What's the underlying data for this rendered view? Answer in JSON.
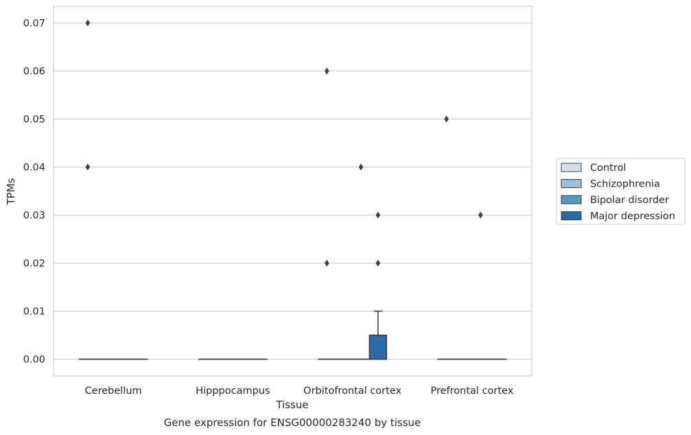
{
  "chart_data": {
    "type": "box",
    "title": "Gene expression for ENSG00000283240 by tissue",
    "xlabel": "Tissue",
    "ylabel": "TPMs",
    "categories": [
      "Cerebellum",
      "Hipppocampus",
      "Orbitofrontal cortex",
      "Prefrontal cortex"
    ],
    "ylim": [
      -0.0035,
      0.0735
    ],
    "yticks": [
      "0.00",
      "0.01",
      "0.02",
      "0.03",
      "0.04",
      "0.05",
      "0.06",
      "0.07"
    ],
    "grid": "horizontal",
    "legend_position": "right",
    "series": [
      {
        "name": "Control",
        "color": "#d1e1ec",
        "boxes": [
          {
            "q1": 0,
            "median": 0,
            "q3": 0,
            "whisker_low": 0,
            "whisker_high": 0,
            "outliers": [
              0.07,
              0.04
            ]
          },
          {
            "q1": 0,
            "median": 0,
            "q3": 0,
            "whisker_low": 0,
            "whisker_high": 0,
            "outliers": []
          },
          {
            "q1": 0,
            "median": 0,
            "q3": 0,
            "whisker_low": 0,
            "whisker_high": 0,
            "outliers": [
              0.06,
              0.02
            ]
          },
          {
            "q1": 0,
            "median": 0,
            "q3": 0,
            "whisker_low": 0,
            "whisker_high": 0,
            "outliers": [
              0.05
            ]
          }
        ]
      },
      {
        "name": "Schizophrenia",
        "color": "#9cc0d8",
        "boxes": [
          {
            "q1": 0,
            "median": 0,
            "q3": 0,
            "whisker_low": 0,
            "whisker_high": 0,
            "outliers": []
          },
          {
            "q1": 0,
            "median": 0,
            "q3": 0,
            "whisker_low": 0,
            "whisker_high": 0,
            "outliers": []
          },
          {
            "q1": 0,
            "median": 0,
            "q3": 0,
            "whisker_low": 0,
            "whisker_high": 0,
            "outliers": []
          },
          {
            "q1": 0,
            "median": 0,
            "q3": 0,
            "whisker_low": 0,
            "whisker_high": 0,
            "outliers": []
          }
        ]
      },
      {
        "name": "Bipolar disorder",
        "color": "#5896c4",
        "boxes": [
          {
            "q1": 0,
            "median": 0,
            "q3": 0,
            "whisker_low": 0,
            "whisker_high": 0,
            "outliers": []
          },
          {
            "q1": 0,
            "median": 0,
            "q3": 0,
            "whisker_low": 0,
            "whisker_high": 0,
            "outliers": []
          },
          {
            "q1": 0,
            "median": 0,
            "q3": 0,
            "whisker_low": 0,
            "whisker_high": 0,
            "outliers": [
              0.04
            ]
          },
          {
            "q1": 0,
            "median": 0,
            "q3": 0,
            "whisker_low": 0,
            "whisker_high": 0,
            "outliers": [
              0.03
            ]
          }
        ]
      },
      {
        "name": "Major depression",
        "color": "#2a6aa8",
        "boxes": [
          {
            "q1": 0,
            "median": 0,
            "q3": 0,
            "whisker_low": 0,
            "whisker_high": 0,
            "outliers": []
          },
          {
            "q1": 0,
            "median": 0,
            "q3": 0,
            "whisker_low": 0,
            "whisker_high": 0,
            "outliers": []
          },
          {
            "q1": 0,
            "median": 0,
            "q3": 0.005,
            "whisker_low": 0,
            "whisker_high": 0.01,
            "outliers": [
              0.03,
              0.02
            ]
          },
          {
            "q1": 0,
            "median": 0,
            "q3": 0,
            "whisker_low": 0,
            "whisker_high": 0,
            "outliers": []
          }
        ]
      }
    ]
  }
}
